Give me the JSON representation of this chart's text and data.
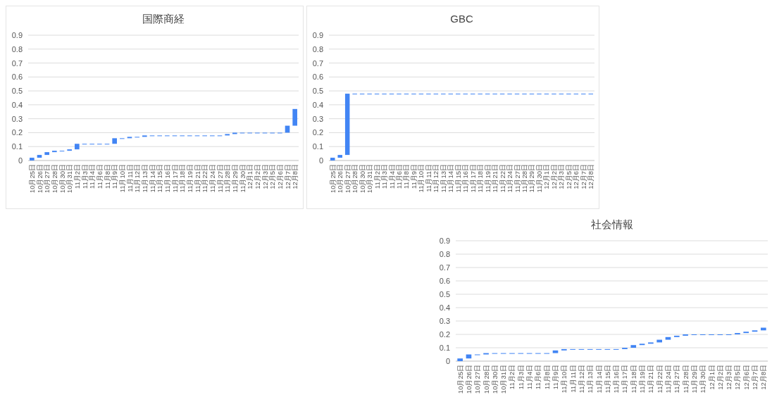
{
  "chart_data": [
    {
      "type": "bar",
      "title": "国際商経",
      "categories": [
        "10月25日",
        "10月26日",
        "10月27日",
        "10月28日",
        "10月30日",
        "10月31日",
        "11月2日",
        "11月3日",
        "11月4日",
        "11月6日",
        "11月8日",
        "11月9日",
        "11月10日",
        "11月11日",
        "11月12日",
        "11月13日",
        "11月14日",
        "11月15日",
        "11月16日",
        "11月17日",
        "11月18日",
        "11月19日",
        "11月21日",
        "11月22日",
        "11月24日",
        "11月27日",
        "11月28日",
        "11月29日",
        "11月30日",
        "12月1日",
        "12月2日",
        "12月3日",
        "12月5日",
        "12月6日",
        "12月7日",
        "12月8日"
      ],
      "values": [
        0.02,
        0.02,
        0.02,
        0.01,
        0,
        0.01,
        0.04,
        0,
        0,
        0,
        0,
        0.04,
        0,
        0.01,
        0,
        0.01,
        0,
        0,
        0,
        0,
        0,
        0,
        0,
        0,
        0,
        0,
        0.01,
        0.01,
        0,
        0,
        0,
        0,
        0,
        0,
        0.05,
        0.12
      ],
      "base": [
        0,
        0.02,
        0.04,
        0.06,
        0.07,
        0.07,
        0.08,
        0.12,
        0.12,
        0.12,
        0.12,
        0.12,
        0.16,
        0.16,
        0.17,
        0.17,
        0.18,
        0.18,
        0.18,
        0.18,
        0.18,
        0.18,
        0.18,
        0.18,
        0.18,
        0.18,
        0.18,
        0.19,
        0.2,
        0.2,
        0.2,
        0.2,
        0.2,
        0.2,
        0.2,
        0.25
      ],
      "color": "#4285f4",
      "ylim": [
        0,
        0.9
      ],
      "yticks": [
        0,
        0.1,
        0.2,
        0.3,
        0.4,
        0.5,
        0.6,
        0.7,
        0.8,
        0.9
      ],
      "grid": "y"
    },
    {
      "type": "bar",
      "title": "GBC",
      "categories": [
        "10月25日",
        "10月26日",
        "10月27日",
        "10月28日",
        "10月30日",
        "10月31日",
        "11月2日",
        "11月3日",
        "11月4日",
        "11月6日",
        "11月8日",
        "11月9日",
        "11月10日",
        "11月11日",
        "11月12日",
        "11月13日",
        "11月14日",
        "11月15日",
        "11月16日",
        "11月17日",
        "11月18日",
        "11月19日",
        "11月21日",
        "11月22日",
        "11月24日",
        "11月27日",
        "11月28日",
        "11月29日",
        "11月30日",
        "12月1日",
        "12月2日",
        "12月3日",
        "12月5日",
        "12月6日",
        "12月7日",
        "12月8日"
      ],
      "values": [
        0.02,
        0.02,
        0.44,
        0,
        0,
        0,
        0,
        0,
        0,
        0,
        0,
        0,
        0,
        0,
        0,
        0,
        0,
        0,
        0,
        0,
        0,
        0,
        0,
        0,
        0,
        0,
        0,
        0,
        0,
        0,
        0,
        0,
        0,
        0,
        0,
        0
      ],
      "base": [
        0,
        0.02,
        0.04,
        0.48,
        0.48,
        0.48,
        0.48,
        0.48,
        0.48,
        0.48,
        0.48,
        0.48,
        0.48,
        0.48,
        0.48,
        0.48,
        0.48,
        0.48,
        0.48,
        0.48,
        0.48,
        0.48,
        0.48,
        0.48,
        0.48,
        0.48,
        0.48,
        0.48,
        0.48,
        0.48,
        0.48,
        0.48,
        0.48,
        0.48,
        0.48,
        0.48
      ],
      "color": "#4285f4",
      "ylim": [
        0,
        0.9
      ],
      "yticks": [
        0,
        0.1,
        0.2,
        0.3,
        0.4,
        0.5,
        0.6,
        0.7,
        0.8,
        0.9
      ],
      "grid": "y"
    },
    {
      "type": "bar",
      "title": "社会情報",
      "categories": [
        "10月25日",
        "10月26日",
        "10月27日",
        "10月28日",
        "10月30日",
        "10月31日",
        "11月2日",
        "11月3日",
        "11月4日",
        "11月6日",
        "11月8日",
        "11月9日",
        "11月10日",
        "11月11日",
        "11月12日",
        "11月13日",
        "11月14日",
        "11月15日",
        "11月16日",
        "11月17日",
        "11月18日",
        "11月19日",
        "11月21日",
        "11月22日",
        "11月24日",
        "11月27日",
        "11月28日",
        "11月29日",
        "11月30日",
        "12月1日",
        "12月2日",
        "12月3日",
        "12月5日",
        "12月6日",
        "12月7日",
        "12月8日"
      ],
      "values": [
        0.02,
        0.03,
        0,
        0.01,
        0,
        0,
        0,
        0,
        0,
        0,
        0,
        0.02,
        0.01,
        0,
        0,
        0,
        0,
        0,
        0,
        0.01,
        0.02,
        0.01,
        0.01,
        0.02,
        0.02,
        0.01,
        0.01,
        0,
        0,
        0,
        0,
        0,
        0.01,
        0.01,
        0.01,
        0.02
      ],
      "base": [
        0,
        0.02,
        0.05,
        0.05,
        0.06,
        0.06,
        0.06,
        0.06,
        0.06,
        0.06,
        0.06,
        0.06,
        0.08,
        0.09,
        0.09,
        0.09,
        0.09,
        0.09,
        0.09,
        0.09,
        0.1,
        0.12,
        0.13,
        0.14,
        0.16,
        0.18,
        0.19,
        0.2,
        0.2,
        0.2,
        0.2,
        0.2,
        0.2,
        0.21,
        0.22,
        0.23
      ],
      "color": "#4285f4",
      "ylim": [
        0,
        0.9
      ],
      "yticks": [
        0,
        0.1,
        0.2,
        0.3,
        0.4,
        0.5,
        0.6,
        0.7,
        0.8,
        0.9
      ],
      "grid": "y"
    }
  ]
}
